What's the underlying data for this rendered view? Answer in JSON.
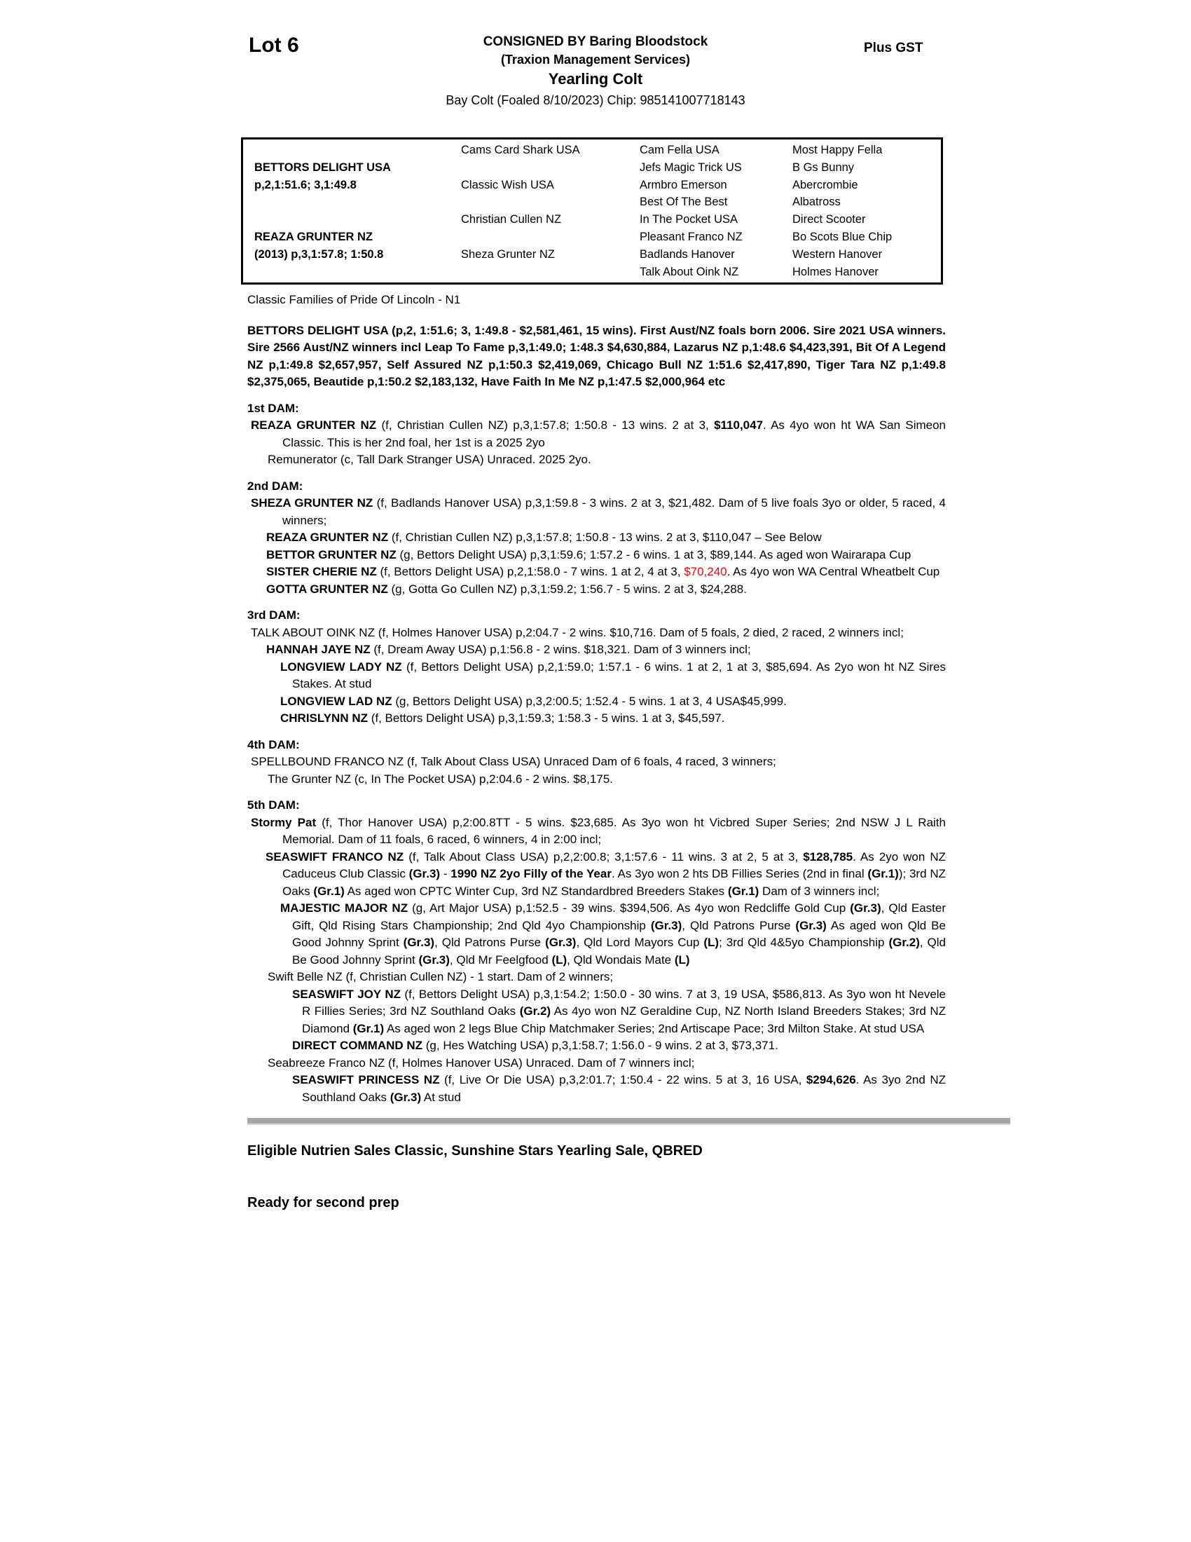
{
  "header": {
    "lot": "Lot 6",
    "consigned": "CONSIGNED BY Baring Bloodstock",
    "consignor_sub": "(Traxion Management Services)",
    "sale_type": "Yearling Colt",
    "plus_gst": "Plus GST",
    "description": "Bay Colt (Foaled 8/10/2023) Chip: 985141007718143"
  },
  "pedigree_table": {
    "sire_name": "BETTORS DELIGHT USA",
    "sire_record": "p,2,1:51.6; 3,1:49.8",
    "dam_name": "REAZA GRUNTER NZ",
    "dam_record": "(2013) p,3,1:57.8; 1:50.8",
    "gen2": [
      "Cams Card Shark USA",
      "Classic Wish USA",
      "Christian Cullen NZ",
      "Sheza Grunter NZ"
    ],
    "gen3": [
      "Cam Fella USA",
      "Jefs Magic Trick US",
      "Armbro Emerson",
      "Best Of The Best",
      "In The Pocket USA",
      "Pleasant Franco NZ",
      "Badlands Hanover",
      "Talk About Oink NZ"
    ],
    "gen4": [
      "Most Happy Fella",
      "B Gs Bunny",
      "Abercrombie",
      "Albatross",
      "Direct Scooter",
      "Bo Scots Blue Chip",
      "Western Hanover",
      "Holmes Hanover"
    ]
  },
  "body": {
    "family_note": "Classic Families of Pride Of Lincoln - N1",
    "sire_paragraph": "BETTORS DELIGHT USA (p,2, 1:51.6; 3, 1:49.8 - $2,581,461, 15 wins). First Aust/NZ foals born 2006. Sire 2021 USA winners. Sire 2566 Aust/NZ winners incl Leap To Fame p,3,1:49.0; 1:48.3 $4,630,884, Lazarus NZ p,1:48.6 $4,423,391, Bit Of A Legend NZ p,1:49.8 $2,657,957, Self Assured NZ p,1:50.3 $2,419,069, Chicago Bull NZ 1:51.6 $2,417,890, Tiger Tara NZ p,1:49.8 $2,375,065, Beautide p,1:50.2 $2,183,132, Have Faith In Me NZ p,1:47.5 $2,000,964 etc",
    "paragraphs": [
      {
        "n": "dam-heading-1",
        "level": "head",
        "seg": [
          {
            "t": "1st DAM:",
            "b": 1
          }
        ]
      },
      {
        "n": "horse-reaza-grunter",
        "level": "dam0",
        "seg": [
          {
            "t": "REAZA GRUNTER NZ ",
            "b": 1
          },
          {
            "t": "(f, Christian Cullen NZ) p,3,1:57.8; 1:50.8 - 13 wins. 2 at 3, "
          },
          {
            "t": "$110,047",
            "b": 1
          },
          {
            "t": ". As 4yo won ht WA San Simeon Classic. This is her 2nd foal, her 1st is a 2025 2yo"
          }
        ]
      },
      {
        "n": "horse-remunerator",
        "level": "sub1",
        "seg": [
          {
            "t": "Remunerator (c, Tall Dark Stranger USA) Unraced. 2025 2yo."
          }
        ]
      },
      {
        "n": "dam-heading-2",
        "level": "head",
        "seg": [
          {
            "t": "2nd DAM:",
            "b": 1
          }
        ]
      },
      {
        "n": "horse-sheza-grunter",
        "level": "dam0",
        "seg": [
          {
            "t": "SHEZA GRUNTER NZ ",
            "b": 1
          },
          {
            "t": "(f, Badlands Hanover USA) p,3,1:59.8 - 3 wins. 2 at 3, $21,482. Dam of 5 live foals 3yo or older, 5 raced, 4 winners;"
          }
        ]
      },
      {
        "n": "horse-reaza-grunter-listing",
        "level": "dam1",
        "seg": [
          {
            "t": "REAZA GRUNTER NZ ",
            "b": 1
          },
          {
            "t": "(f, Christian Cullen NZ) p,3,1:57.8; 1:50.8 - 13 wins. 2 at 3, $110,047 – See Below"
          }
        ]
      },
      {
        "n": "horse-bettor-grunter",
        "level": "dam1",
        "seg": [
          {
            "t": "BETTOR GRUNTER NZ ",
            "b": 1
          },
          {
            "t": "(g, Bettors Delight USA) p,3,1:59.6; 1:57.2 - 6 wins. 1 at 3, $89,144. As aged won Wairarapa Cup"
          }
        ]
      },
      {
        "n": "horse-sister-cherie",
        "level": "dam1",
        "seg": [
          {
            "t": "SISTER CHERIE NZ ",
            "b": 1
          },
          {
            "t": "(f, Bettors Delight USA) p,2,1:58.0 - 7 wins. 1 at 2, 4 at 3, "
          },
          {
            "t": "$70,240",
            "r": 1
          },
          {
            "t": ". As 4yo won WA Central Wheatbelt Cup"
          }
        ]
      },
      {
        "n": "horse-gotta-grunter",
        "level": "dam1",
        "seg": [
          {
            "t": "GOTTA GRUNTER NZ ",
            "b": 1
          },
          {
            "t": "(g, Gotta Go Cullen NZ) p,3,1:59.2; 1:56.7 - 5 wins. 2 at 3, $24,288."
          }
        ]
      },
      {
        "n": "dam-heading-3",
        "level": "head",
        "seg": [
          {
            "t": "3rd DAM:",
            "b": 1
          }
        ]
      },
      {
        "n": "horse-talk-about-oink",
        "level": "dam0",
        "seg": [
          {
            "t": "TALK ABOUT OINK NZ (f, Holmes Hanover USA) p,2:04.7 - 2 wins. $10,716. Dam of 5 foals, 2 died, 2 raced, 2 winners incl;"
          }
        ]
      },
      {
        "n": "horse-hannah-jaye",
        "level": "dam1",
        "seg": [
          {
            "t": "HANNAH JAYE NZ ",
            "b": 1
          },
          {
            "t": "(f, Dream Away USA) p,1:56.8 - 2 wins. $18,321. Dam of 3 winners incl;"
          }
        ]
      },
      {
        "n": "horse-longview-lady",
        "level": "dam2",
        "seg": [
          {
            "t": "LONGVIEW LADY NZ ",
            "b": 1
          },
          {
            "t": "(f, Bettors Delight USA) p,2,1:59.0; 1:57.1 - 6 wins. 1 at 2, 1 at 3, $85,694. As 2yo won ht NZ Sires Stakes. At stud"
          }
        ]
      },
      {
        "n": "horse-longview-lad",
        "level": "dam2",
        "seg": [
          {
            "t": "LONGVIEW LAD NZ ",
            "b": 1
          },
          {
            "t": "(g, Bettors Delight USA) p,3,2:00.5; 1:52.4 - 5 wins. 1 at 3, 4 USA$45,999."
          }
        ]
      },
      {
        "n": "horse-chrislynn",
        "level": "dam2",
        "seg": [
          {
            "t": "CHRISLYNN NZ ",
            "b": 1
          },
          {
            "t": "(f, Bettors Delight USA) p,3,1:59.3; 1:58.3 - 5 wins. 1 at 3, $45,597."
          }
        ]
      },
      {
        "n": "dam-heading-4",
        "level": "head",
        "seg": [
          {
            "t": "4th DAM:",
            "b": 1
          }
        ]
      },
      {
        "n": "horse-spellbound-franco",
        "level": "dam0",
        "seg": [
          {
            "t": "SPELLBOUND FRANCO NZ (f, Talk About Class USA) Unraced Dam of 6 foals, 4 raced, 3 winners;"
          }
        ]
      },
      {
        "n": "horse-the-grunter",
        "level": "sub1",
        "seg": [
          {
            "t": "The Grunter NZ (c, In The Pocket USA) p,2:04.6 - 2 wins. $8,175."
          }
        ]
      },
      {
        "n": "dam-heading-5",
        "level": "head",
        "seg": [
          {
            "t": "5th DAM:",
            "b": 1
          }
        ]
      },
      {
        "n": "horse-stormy-pat",
        "level": "dam0",
        "seg": [
          {
            "t": "Stormy Pat ",
            "b": 1
          },
          {
            "t": "(f, Thor Hanover USA) p,2:00.8TT - 5 wins. $23,685. As 3yo won ht Vicbred Super Series; 2nd NSW J L Raith Memorial. Dam of 11 foals, 6 raced, 6 winners, 4 in 2:00 incl;"
          }
        ]
      },
      {
        "n": "horse-seaswift-franco",
        "level": "dam1b",
        "seg": [
          {
            "t": "SEASWIFT FRANCO NZ ",
            "b": 1
          },
          {
            "t": "(f, Talk About Class USA) p,2,2:00.8; 3,1:57.6 - 11 wins. 3 at 2, 5 at 3, "
          },
          {
            "t": "$128,785",
            "b": 1
          },
          {
            "t": ". As 2yo won NZ Caduceus Club Classic "
          },
          {
            "t": "(Gr.3)",
            "b": 1
          },
          {
            "t": " - "
          },
          {
            "t": "1990 NZ 2yo Filly of the Year",
            "b": 1
          },
          {
            "t": ". As 3yo won 2 hts DB Fillies Series (2nd in final "
          },
          {
            "t": "(Gr.1)",
            "b": 1
          },
          {
            "t": "); 3rd NZ Oaks "
          },
          {
            "t": "(Gr.1)",
            "b": 1
          },
          {
            "t": " As aged won CPTC Winter Cup, 3rd NZ Standardbred Breeders Stakes "
          },
          {
            "t": "(Gr.1)",
            "b": 1
          },
          {
            "t": " Dam of 3 winners incl;"
          }
        ]
      },
      {
        "n": "horse-majestic-major",
        "level": "dam2",
        "seg": [
          {
            "t": "MAJESTIC MAJOR NZ ",
            "b": 1
          },
          {
            "t": "(g, Art Major USA) p,1:52.5 - 39 wins. $394,506. As 4yo won Redcliffe Gold Cup "
          },
          {
            "t": "(Gr.3)",
            "b": 1
          },
          {
            "t": ", Qld Easter Gift, Qld Rising Stars Championship; 2nd Qld 4yo Championship "
          },
          {
            "t": "(Gr.3)",
            "b": 1
          },
          {
            "t": ", Qld Patrons Purse "
          },
          {
            "t": "(Gr.3)",
            "b": 1
          },
          {
            "t": " As aged won Qld Be Good Johnny Sprint "
          },
          {
            "t": "(Gr.3)",
            "b": 1
          },
          {
            "t": ", Qld Patrons Purse "
          },
          {
            "t": "(Gr.3)",
            "b": 1
          },
          {
            "t": ", Qld Lord Mayors Cup "
          },
          {
            "t": "(L)",
            "b": 1
          },
          {
            "t": "; 3rd Qld 4&5yo Championship "
          },
          {
            "t": "(Gr.2)",
            "b": 1
          },
          {
            "t": ", Qld Be Good Johnny Sprint "
          },
          {
            "t": "(Gr.3)",
            "b": 1
          },
          {
            "t": ", Qld Mr Feelgfood "
          },
          {
            "t": "(L)",
            "b": 1
          },
          {
            "t": ", Qld Wondais Mate "
          },
          {
            "t": "(L)",
            "b": 1
          }
        ]
      },
      {
        "n": "horse-swift-belle",
        "level": "sub1",
        "seg": [
          {
            "t": "Swift Belle NZ (f, Christian Cullen NZ) - 1 start. Dam of 2 winners;"
          }
        ]
      },
      {
        "n": "horse-seaswift-joy",
        "level": "dam3",
        "seg": [
          {
            "t": "SEASWIFT JOY NZ ",
            "b": 1
          },
          {
            "t": "(f, Bettors Delight USA) p,3,1:54.2; 1:50.0 - 30 wins. 7 at 3, 19 USA, $586,813. As 3yo won ht Nevele R Fillies Series; 3rd NZ Southland Oaks "
          },
          {
            "t": "(Gr.2)",
            "b": 1
          },
          {
            "t": " As 4yo won NZ Geraldine Cup, NZ North Island Breeders Stakes; 3rd NZ Diamond "
          },
          {
            "t": "(Gr.1)",
            "b": 1
          },
          {
            "t": " As aged won 2 legs Blue Chip Matchmaker Series; 2nd Artiscape Pace; 3rd Milton Stake. At stud USA"
          }
        ]
      },
      {
        "n": "horse-direct-command",
        "level": "dam3",
        "seg": [
          {
            "t": "DIRECT COMMAND NZ ",
            "b": 1
          },
          {
            "t": "(g, Hes Watching USA) p,3,1:58.7; 1:56.0 - 9 wins. 2 at 3, $73,371."
          }
        ]
      },
      {
        "n": "horse-seabreeze-franco",
        "level": "sub1",
        "seg": [
          {
            "t": "Seabreeze Franco NZ (f, Holmes Hanover USA) Unraced. Dam of 7 winners incl;"
          }
        ]
      },
      {
        "n": "horse-seaswift-princess",
        "level": "dam3",
        "seg": [
          {
            "t": "SEASWIFT PRINCESS NZ ",
            "b": 1
          },
          {
            "t": "(f, Live Or Die USA) p,3,2:01.7; 1:50.4 - 22 wins. 5 at 3, 16 USA, "
          },
          {
            "t": "$294,626",
            "b": 1
          },
          {
            "t": ". As 3yo 2nd NZ Southland Oaks "
          },
          {
            "t": "(Gr.3)",
            "b": 1
          },
          {
            "t": " At stud"
          }
        ]
      }
    ]
  },
  "footer": {
    "eligibility": "Eligible Nutrien Sales Classic, Sunshine Stars Yearling Sale, QBRED",
    "prep_note": "Ready for second prep"
  },
  "colors": {
    "highlight_red": "#ff0000",
    "divider_gray": "#a6a6a6"
  }
}
